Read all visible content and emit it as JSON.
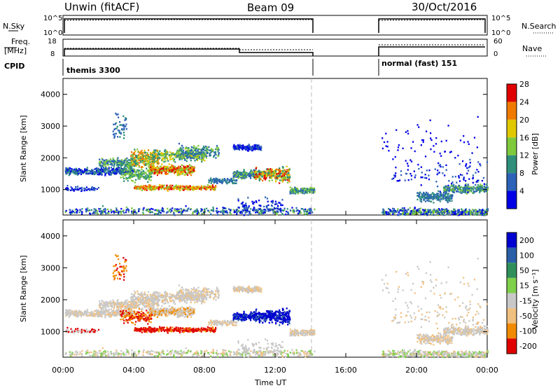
{
  "header": {
    "left_title": "Unwin (fitACF)",
    "center_title": "Beam 09",
    "date": "30/Oct/2016"
  },
  "status_panel": {
    "nsky_label": "N.Sky",
    "nsky_ticks": [
      "10^5",
      "10^0"
    ],
    "nsearch_label": "N.Search",
    "nsearch_ticks": [
      "10^5",
      "10^0"
    ],
    "freq_label_1": "Freq.",
    "freq_label_2": "[MHz]",
    "freq_ticks": [
      "18",
      "8"
    ],
    "nave_label": "Nave",
    "nave_ticks": [
      "60",
      "0"
    ],
    "cpid_label": "CPID",
    "cpid_modes": [
      "themis 3300",
      "normal (fast) 151"
    ]
  },
  "chart_data": [
    {
      "type": "heatmap",
      "name": "power",
      "ylabel": "Slant Range [km]",
      "yticks": [
        "1000",
        "2000",
        "3000",
        "4000"
      ],
      "ylim": [
        200,
        4500
      ],
      "xlim": [
        0,
        24
      ],
      "colorbar_label": "Power [dB]",
      "colorbar_ticks": [
        "4",
        "8",
        "12",
        "16",
        "20",
        "24",
        "28"
      ],
      "colors": [
        "#0000e6",
        "#2c62b8",
        "#2f8f7a",
        "#7fc93c",
        "#e0c800",
        "#f07a00",
        "#e00000"
      ],
      "data_gap_hours": [
        14.2,
        18.0
      ]
    },
    {
      "type": "heatmap",
      "name": "velocity",
      "ylabel": "Slant Range [km]",
      "xlabel": "Time UT",
      "yticks": [
        "1000",
        "2000",
        "3000",
        "4000"
      ],
      "xticks": [
        "00:00",
        "04:00",
        "08:00",
        "12:00",
        "16:00",
        "20:00",
        "00:00"
      ],
      "ylim": [
        200,
        4500
      ],
      "xlim": [
        0,
        24
      ],
      "colorbar_label": "Velocity [m s⁻¹]",
      "colorbar_ticks": [
        "200",
        "100",
        "50",
        "15",
        "-15",
        "-50",
        "-100",
        "-200"
      ],
      "colors": [
        "#0000d0",
        "#2a5fa8",
        "#2f8f5a",
        "#7fd04a",
        "#c8c8c8",
        "#f0c080",
        "#f08a00",
        "#e00000"
      ]
    }
  ]
}
